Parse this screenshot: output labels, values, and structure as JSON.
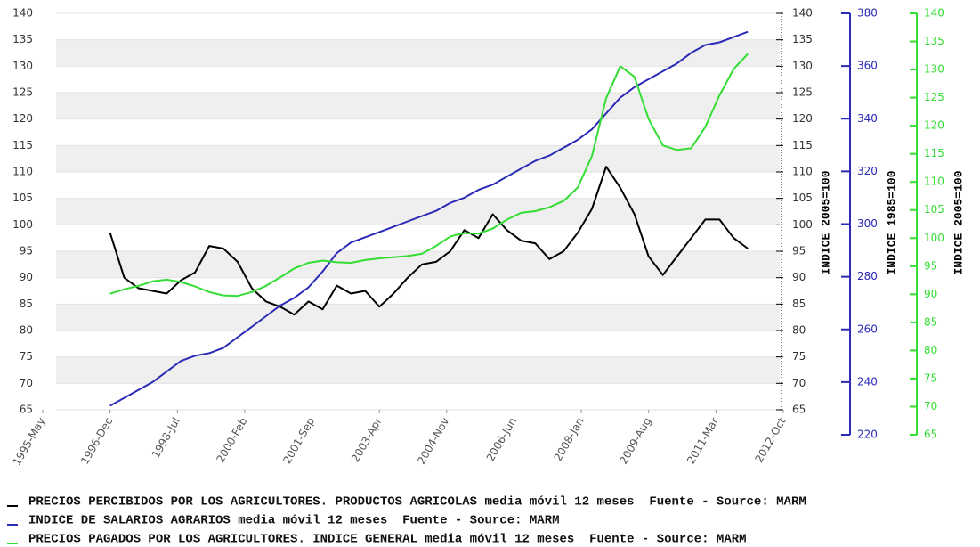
{
  "chart_data": {
    "type": "line",
    "x": [
      "1996-12",
      "1997-04",
      "1997-08",
      "1997-12",
      "1998-04",
      "1998-08",
      "1998-12",
      "1999-04",
      "1999-08",
      "1999-12",
      "2000-04",
      "2000-08",
      "2000-12",
      "2001-04",
      "2001-08",
      "2001-12",
      "2002-04",
      "2002-08",
      "2002-12",
      "2003-04",
      "2003-08",
      "2003-12",
      "2004-04",
      "2004-08",
      "2004-12",
      "2005-04",
      "2005-08",
      "2005-12",
      "2006-04",
      "2006-08",
      "2006-12",
      "2007-04",
      "2007-08",
      "2007-12",
      "2008-04",
      "2008-08",
      "2008-12",
      "2009-04",
      "2009-08",
      "2009-12",
      "2010-04",
      "2010-08",
      "2010-12",
      "2011-04",
      "2011-08",
      "2011-12"
    ],
    "xlim": [
      "1995-05",
      "2012-10"
    ],
    "xticks": [
      {
        "value": "1995-05",
        "label": "1995-May"
      },
      {
        "value": "1996-12",
        "label": "1996-Dec"
      },
      {
        "value": "1998-07",
        "label": "1998-Jul"
      },
      {
        "value": "2000-02",
        "label": "2000-Feb"
      },
      {
        "value": "2001-09",
        "label": "2001-Sep"
      },
      {
        "value": "2003-04",
        "label": "2003-Apr"
      },
      {
        "value": "2004-11",
        "label": "2004-Nov"
      },
      {
        "value": "2006-06",
        "label": "2006-Jun"
      },
      {
        "value": "2008-01",
        "label": "2008-Jan"
      },
      {
        "value": "2009-08",
        "label": "2009-Aug"
      },
      {
        "value": "2011-03",
        "label": "2011-Mar"
      },
      {
        "value": "2012-10",
        "label": "2012-Oct"
      }
    ],
    "ylim": [
      65,
      140
    ],
    "yticks": [
      65,
      70,
      75,
      80,
      85,
      90,
      95,
      100,
      105,
      110,
      115,
      120,
      125,
      130,
      135,
      140
    ],
    "ylabel": "INDICE 2005=100",
    "y2lim": [
      220,
      380
    ],
    "y2ticks": [
      220,
      240,
      260,
      280,
      300,
      320,
      340,
      360,
      380
    ],
    "y2label": "INDICE 1985=100",
    "y3lim": [
      65,
      140
    ],
    "y3ticks": [
      65,
      70,
      75,
      80,
      85,
      90,
      95,
      100,
      105,
      110,
      115,
      120,
      125,
      130,
      135,
      140
    ],
    "y3label": "INDICE 2005=100",
    "grid": true,
    "series": [
      {
        "name": "PRECIOS PERCIBIDOS POR LOS AGRICULTORES. PRODUCTOS AGRICOLAS media móvil 12 meses  Fuente - Source: MARM",
        "color": "#000000",
        "axis": "y",
        "values": [
          98.5,
          90,
          88,
          87.5,
          87,
          89.5,
          91,
          96,
          95.5,
          93,
          88,
          85.5,
          84.5,
          83,
          85.5,
          84,
          88.5,
          87,
          87.5,
          84.5,
          87,
          90,
          92.5,
          93,
          95,
          99,
          97.5,
          102,
          99,
          97,
          96.5,
          93.5,
          95,
          98.5,
          103,
          111,
          107,
          102,
          94,
          90.5,
          94,
          97.5,
          101,
          101,
          97.5,
          95.5
        ]
      },
      {
        "name": "INDICE DE SALARIOS AGRARIOS media móvil 12 meses  Fuente - Source: MARM",
        "color": "#2b2bb8",
        "axis": "y2",
        "values": [
          231,
          234,
          237,
          240,
          244,
          248,
          250,
          251,
          253,
          257,
          261,
          265,
          269,
          272,
          276,
          282,
          289,
          293,
          295,
          297,
          299,
          301,
          303,
          305,
          308,
          310,
          313,
          315,
          318,
          321,
          324,
          326,
          329,
          332,
          336,
          342,
          348,
          352,
          355,
          358,
          361,
          365,
          368,
          369,
          371,
          373
        ]
      },
      {
        "name": "PRECIOS PAGADOS POR LOS AGRICULTORES. INDICE GENERAL media móvil 12 meses  Fuente - Source: MARM",
        "color": "#33dd33",
        "axis": "y3",
        "values": [
          90.1,
          90.9,
          91.5,
          92.3,
          92.6,
          92.2,
          91.4,
          90.4,
          89.8,
          89.7,
          90.4,
          91.5,
          93,
          94.6,
          95.6,
          96,
          95.7,
          95.6,
          96.1,
          96.4,
          96.6,
          96.8,
          97.2,
          98.6,
          100.3,
          100.9,
          100.8,
          101.7,
          103.3,
          104.5,
          104.8,
          105.5,
          106.6,
          109,
          114.6,
          124.9,
          130.6,
          128.7,
          121.2,
          116.5,
          115.7,
          116,
          119.8,
          125.4,
          130.1,
          132.8
        ]
      }
    ]
  }
}
